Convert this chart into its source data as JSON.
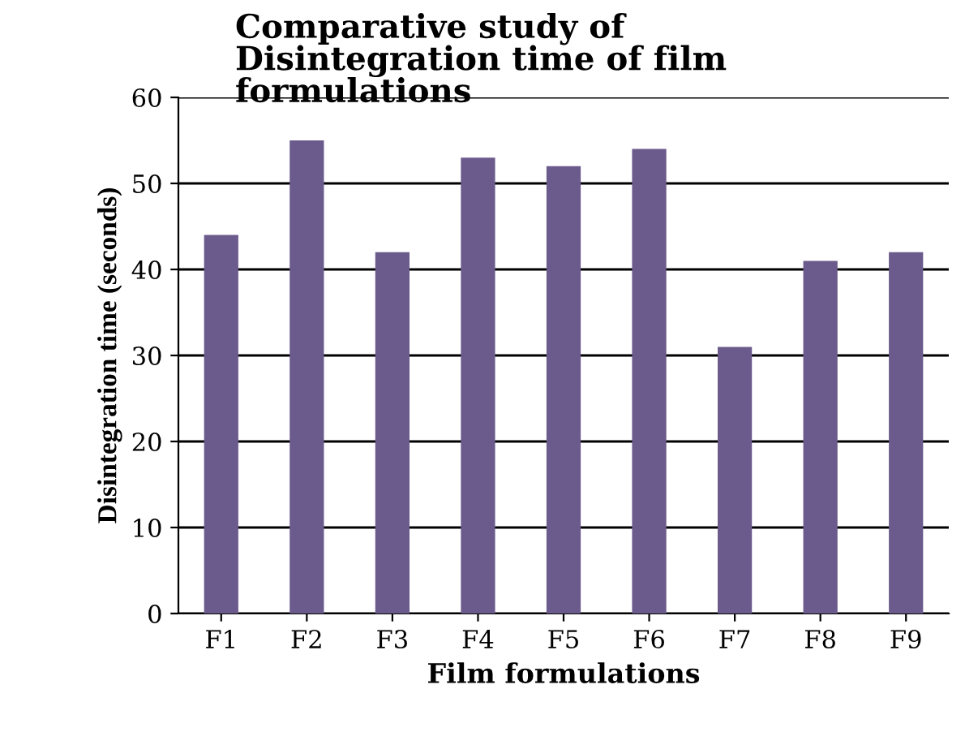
{
  "chart_data": {
    "type": "bar",
    "title": "Comparative study of\nDisintegration time of film\nformulations",
    "xlabel": "Film formulations",
    "ylabel": "Disintegration time (seconds)",
    "categories": [
      "F1",
      "F2",
      "F3",
      "F4",
      "F5",
      "F6",
      "F7",
      "F8",
      "F9"
    ],
    "values": [
      44,
      55,
      42,
      53,
      52,
      54,
      31,
      41,
      42
    ],
    "color": "#6b5a8c",
    "ylim": [
      0,
      60
    ],
    "yticks": [
      0,
      10,
      20,
      30,
      40,
      50,
      60
    ],
    "grid": "y"
  }
}
